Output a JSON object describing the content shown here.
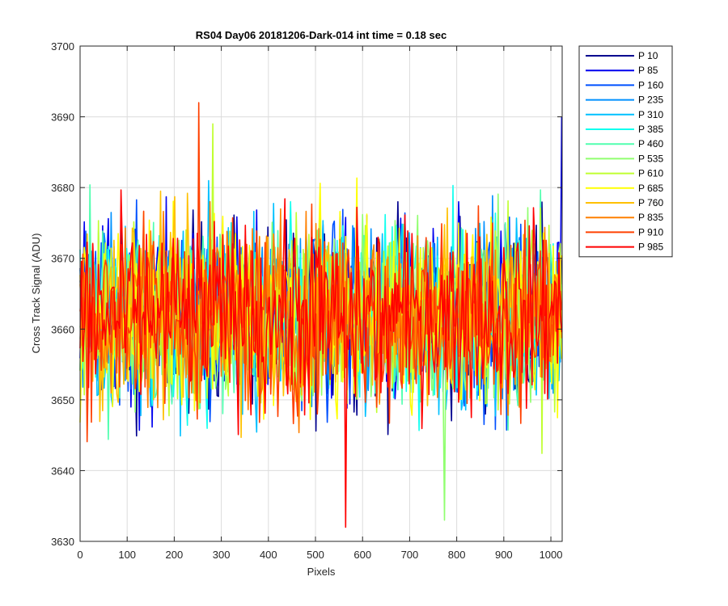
{
  "chart_data": {
    "type": "line",
    "title": "RS04 Day06 20181206-Dark-014 int time = 0.18 sec",
    "xlabel": "Pixels",
    "ylabel": "Cross Track Signal (ADU)",
    "xlim": [
      0,
      1024
    ],
    "ylim": [
      3630,
      3700
    ],
    "x_ticks": [
      0,
      100,
      200,
      300,
      400,
      500,
      600,
      700,
      800,
      900,
      1000
    ],
    "y_ticks": [
      3630,
      3640,
      3650,
      3660,
      3670,
      3680,
      3690,
      3700
    ],
    "grid": true,
    "legend_position": "outside-right",
    "x_range": [
      0,
      1023
    ],
    "noise_center": 3662,
    "noise_half_range": 16,
    "series": [
      {
        "name": "P 10",
        "color": "#00008f"
      },
      {
        "name": "P 85",
        "color": "#0000ef"
      },
      {
        "name": "P 160",
        "color": "#0050ff"
      },
      {
        "name": "P 235",
        "color": "#0090ff"
      },
      {
        "name": "P 310",
        "color": "#00c0ff"
      },
      {
        "name": "P 385",
        "color": "#10ffef"
      },
      {
        "name": "P 460",
        "color": "#50ffaf"
      },
      {
        "name": "P 535",
        "color": "#90ff6f"
      },
      {
        "name": "P 610",
        "color": "#c0ff30"
      },
      {
        "name": "P 685",
        "color": "#ffff00"
      },
      {
        "name": "P 760",
        "color": "#ffc000"
      },
      {
        "name": "P 835",
        "color": "#ff8000"
      },
      {
        "name": "P 910",
        "color": "#ff4000"
      },
      {
        "name": "P 985",
        "color": "#ff0000"
      }
    ],
    "highlights": [
      {
        "series": "P 910",
        "x": 253,
        "y": 3692
      },
      {
        "series": "P 985",
        "x": 565,
        "y": 3632
      },
      {
        "series": "P 85",
        "x": 1023,
        "y": 3690
      },
      {
        "series": "P 610",
        "x": 283,
        "y": 3689
      },
      {
        "series": "P 535",
        "x": 773,
        "y": 3633
      }
    ]
  }
}
